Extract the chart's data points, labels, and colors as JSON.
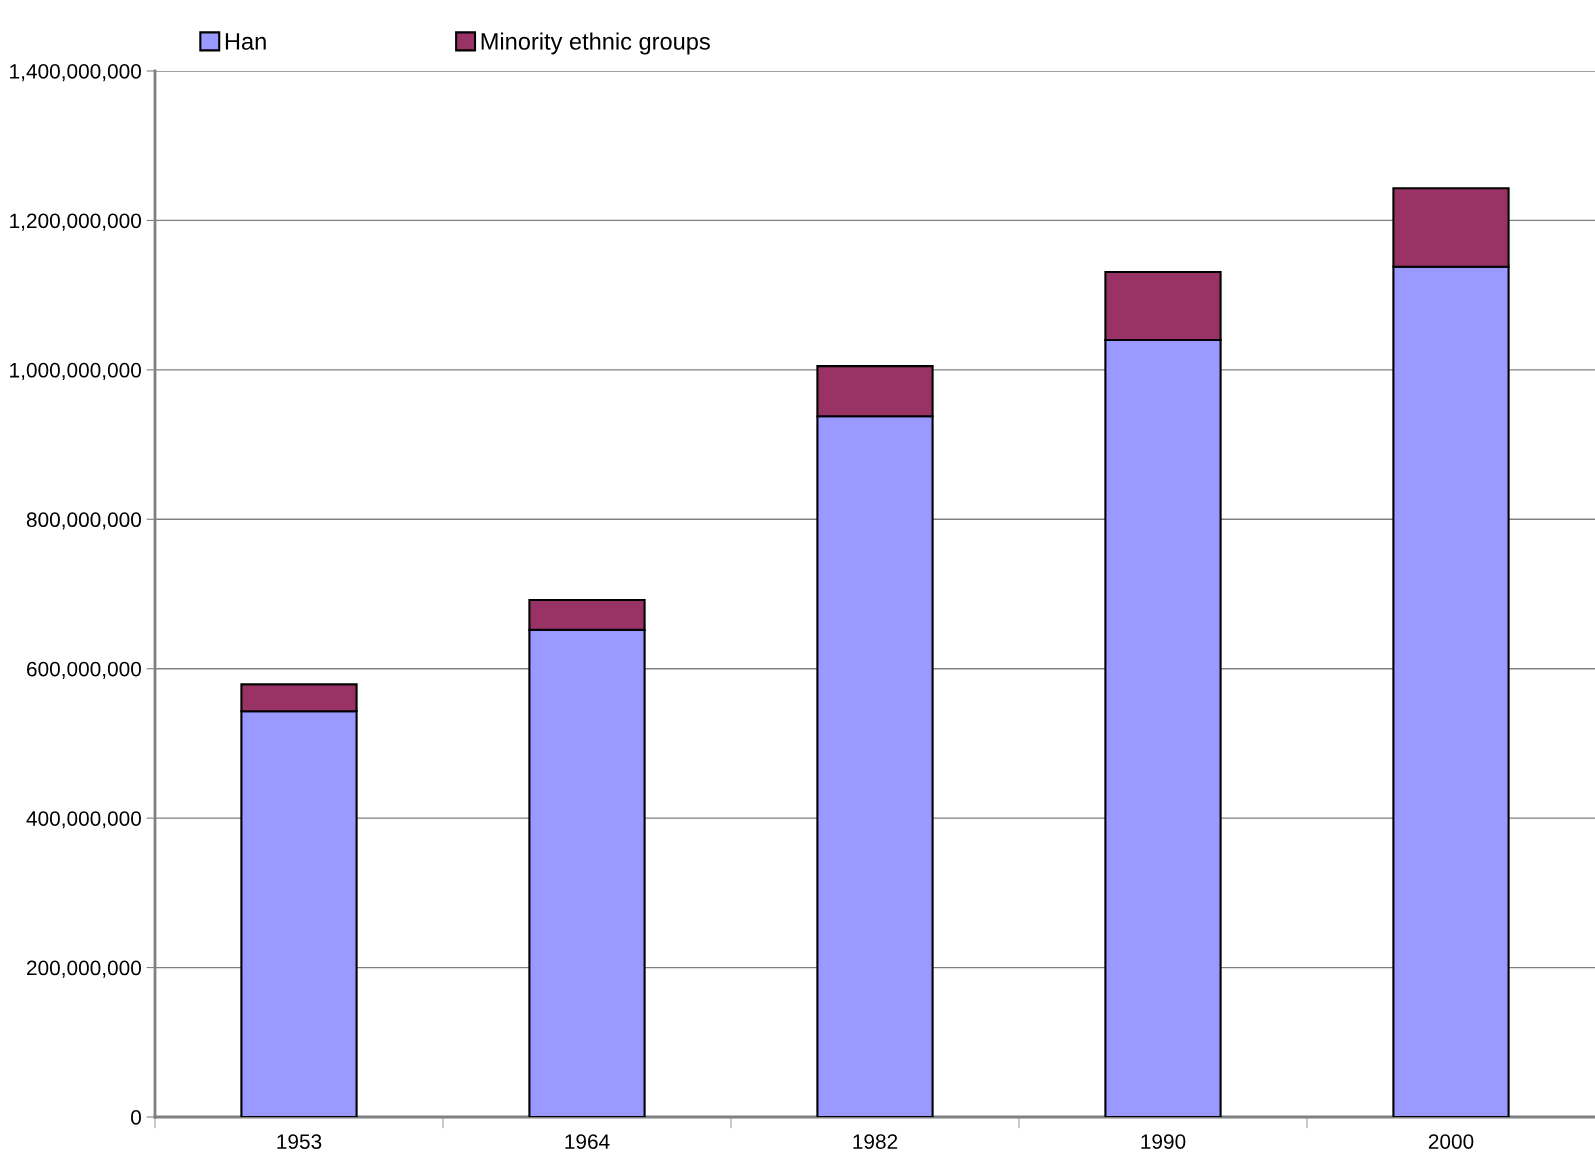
{
  "chart_data": {
    "type": "bar",
    "stacked": true,
    "categories": [
      "1953",
      "1964",
      "1982",
      "1990",
      "2000"
    ],
    "series": [
      {
        "name": "Han",
        "color": "#9999ff",
        "values": [
          543000000,
          652000000,
          938000000,
          1040000000,
          1138000000
        ]
      },
      {
        "name": "Minority ethnic groups",
        "color": "#993366",
        "values": [
          36000000,
          40000000,
          67000000,
          91000000,
          105000000
        ]
      }
    ],
    "ylim": [
      0,
      1400000000
    ],
    "yticks": [
      {
        "value": 0,
        "label": "0"
      },
      {
        "value": 200000000,
        "label": "200,000,000"
      },
      {
        "value": 400000000,
        "label": "400,000,000"
      },
      {
        "value": 600000000,
        "label": "600,000,000"
      },
      {
        "value": 800000000,
        "label": "800,000,000"
      },
      {
        "value": 1000000000,
        "label": "1,000,000,000"
      },
      {
        "value": 1200000000,
        "label": "1,200,000,000"
      },
      {
        "value": 1400000000,
        "label": "1,400,000,000"
      }
    ],
    "grid": "y",
    "legend": "top left"
  }
}
